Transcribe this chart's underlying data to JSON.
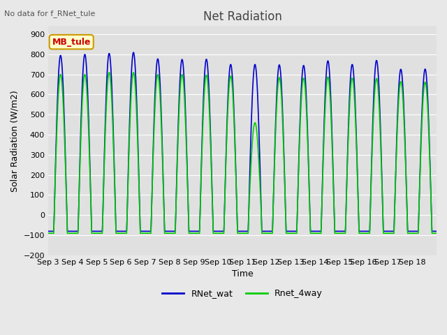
{
  "title": "Net Radiation",
  "xlabel": "Time",
  "ylabel": "Solar Radiation (W/m2)",
  "ylim": [
    -200,
    940
  ],
  "yticks": [
    -200,
    -100,
    0,
    100,
    200,
    300,
    400,
    500,
    600,
    700,
    800,
    900
  ],
  "background_color": "#e8e8e8",
  "plot_bg_color": "#e0e0e0",
  "grid_color": "#ffffff",
  "note_text": "No data for f_RNet_tule",
  "legend_label1": "RNet_wat",
  "legend_label2": "Rnet_4way",
  "legend_color1": "#0000cc",
  "legend_color2": "#00cc00",
  "tag_text": "MB_tule",
  "tag_bg": "#ffffcc",
  "tag_border": "#cc9900",
  "tag_text_color": "#cc0000",
  "n_days": 16,
  "start_day": 3,
  "peak_heights_blue": [
    795,
    800,
    805,
    810,
    778,
    775,
    776,
    750,
    750,
    748,
    745,
    768,
    750,
    770,
    726,
    727
  ],
  "peak_heights_green": [
    700,
    700,
    710,
    710,
    700,
    700,
    697,
    693,
    460,
    685,
    682,
    688,
    682,
    680,
    665,
    662
  ],
  "night_blue": -80,
  "night_green": -90,
  "line_width": 1.2,
  "xtick_labels": [
    "Sep 3",
    "Sep 4",
    "Sep 5",
    "Sep 6",
    "Sep 7",
    "Sep 8",
    "Sep 9",
    "Sep 10",
    "Sep 11",
    "Sep 12",
    "Sep 13",
    "Sep 14",
    "Sep 15",
    "Sep 16",
    "Sep 17",
    "Sep 18"
  ]
}
